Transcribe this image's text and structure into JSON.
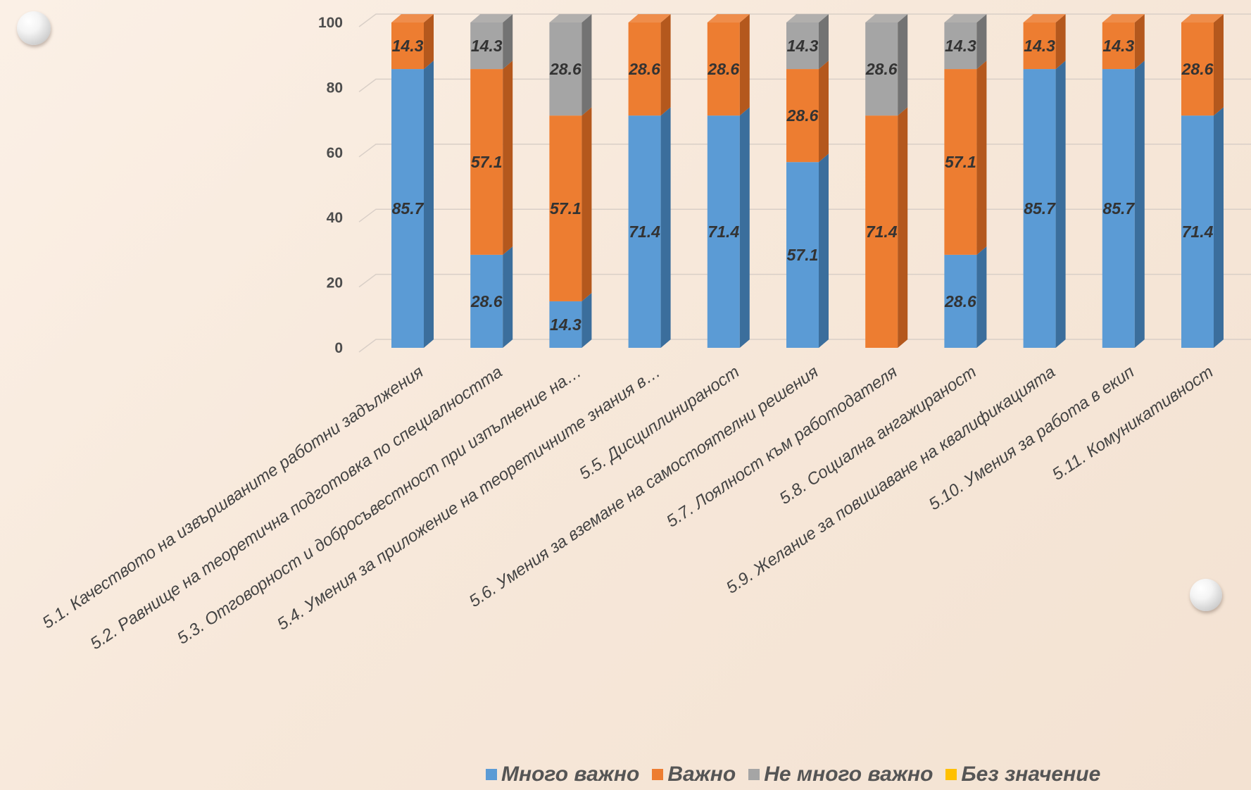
{
  "chart_data": {
    "type": "bar",
    "stacked": true,
    "ylim": [
      0,
      100
    ],
    "yticks": [
      0,
      20,
      40,
      60,
      80,
      100
    ],
    "grid": true,
    "legend_position": "bottom",
    "categories": [
      "5.1. Качеството на извършваните работни задължения",
      "5.2. Равнище на теоретична подготовка по специалността",
      "5.3. Отговорност и добросъвестност при изпълнение на…",
      "5.4. Умения за приложение на теоретичните знания в…",
      "5.5. Дисциплинираност",
      "5.6. Умения за вземане на самостоятелни решения",
      "5.7. Лоялност към работодателя",
      "5.8. Социална ангажираност",
      "5.9. Желание за повишаване на квалификацията",
      "5.10. Умения за работа в екип",
      "5.11. Комуникативност"
    ],
    "series": [
      {
        "name": "Много важно",
        "color": "#5b9bd5",
        "side_color": "#3b6e9c",
        "values": [
          85.7,
          28.6,
          14.3,
          71.4,
          71.4,
          57.1,
          0,
          28.6,
          85.7,
          85.7,
          71.4
        ]
      },
      {
        "name": "Важно",
        "color": "#ed7d31",
        "side_color": "#b4581d",
        "values": [
          14.3,
          57.1,
          57.1,
          28.6,
          28.6,
          28.6,
          71.4,
          57.1,
          14.3,
          14.3,
          28.6
        ]
      },
      {
        "name": "Не много важно",
        "color": "#a5a5a5",
        "side_color": "#737373",
        "values": [
          0,
          14.3,
          28.6,
          0,
          0,
          14.3,
          28.6,
          14.3,
          0,
          0,
          0
        ]
      },
      {
        "name": "Без значение",
        "color": "#ffc000",
        "side_color": "#c99700",
        "values": [
          0,
          0,
          0,
          0,
          0,
          0,
          0,
          0,
          0,
          0,
          0
        ]
      }
    ]
  }
}
